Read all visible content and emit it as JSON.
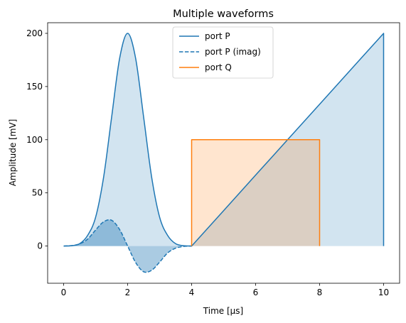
{
  "chart_data": {
    "type": "line",
    "title": "Multiple waveforms",
    "xlabel": "Time [µs]",
    "ylabel": "Amplitude [mV]",
    "xlim": [
      -0.5,
      10.5
    ],
    "ylim": [
      -35,
      210
    ],
    "x_ticks": [
      0,
      2,
      4,
      6,
      8,
      10
    ],
    "y_ticks": [
      0,
      50,
      100,
      150,
      200
    ],
    "grid": false,
    "legend_position": "top-center",
    "colors": {
      "port_p": "#1f77b4",
      "port_q": "#ff7f0e"
    },
    "series": [
      {
        "name": "port P",
        "style": "solid",
        "color": "#1f77b4",
        "filled": true,
        "x": [
          0,
          0.25,
          0.5,
          0.75,
          1,
          1.25,
          1.5,
          1.75,
          2,
          2.25,
          2.5,
          2.75,
          3,
          3.25,
          3.5,
          3.75,
          4,
          5,
          6,
          7,
          8,
          9,
          10,
          10
        ],
        "y": [
          0,
          0.3,
          2.2,
          10,
          27.1,
          64.9,
          121.2,
          176.5,
          200,
          176.5,
          121.2,
          64.9,
          27.1,
          10,
          2.2,
          0.3,
          0,
          33.3,
          66.7,
          100,
          133.3,
          166.7,
          200,
          0
        ]
      },
      {
        "name": "port P (imag)",
        "style": "dashed",
        "color": "#1f77b4",
        "filled": true,
        "x": [
          0,
          0.25,
          0.5,
          0.75,
          1,
          1.25,
          1.5,
          1.75,
          2,
          2.25,
          2.5,
          2.75,
          3,
          3.25,
          3.5,
          3.75,
          4
        ],
        "y": [
          0,
          0.4,
          2.0,
          6.5,
          15.1,
          22.8,
          24.2,
          15.5,
          0,
          -15.5,
          -24.2,
          -22.8,
          -15.1,
          -6.5,
          -2.0,
          -0.4,
          0
        ]
      },
      {
        "name": "port Q",
        "style": "solid",
        "color": "#ff7f0e",
        "filled": true,
        "x": [
          4,
          4,
          8,
          8
        ],
        "y": [
          0,
          100,
          100,
          0
        ]
      }
    ]
  }
}
